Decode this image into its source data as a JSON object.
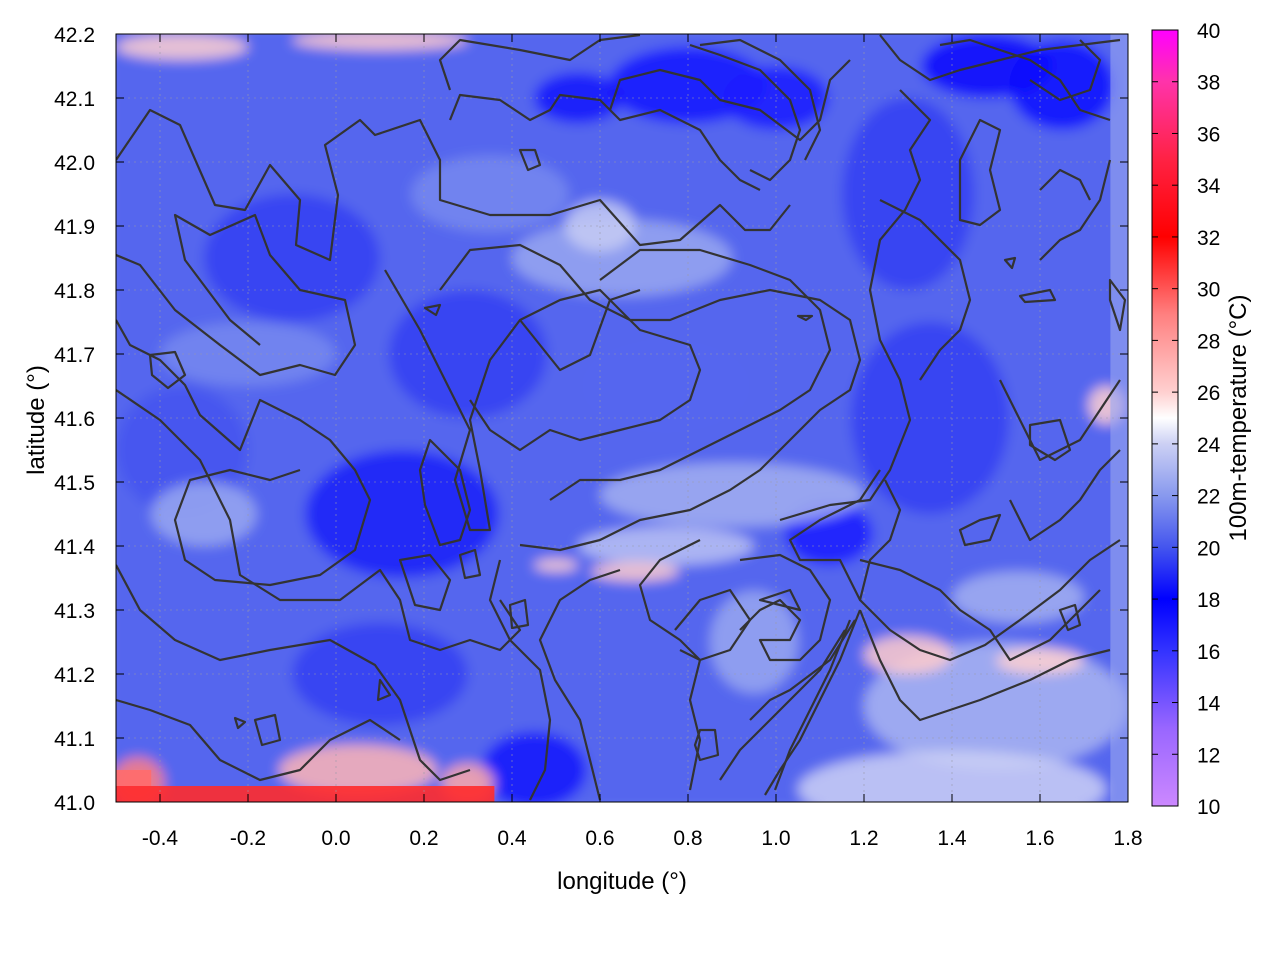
{
  "chart_data": {
    "type": "heatmap",
    "title": "",
    "xlabel": "longitude (°)",
    "ylabel": "latitude (°)",
    "colorbar_label": "100m-temperature (°C)",
    "xlim": [
      -0.5,
      1.8
    ],
    "ylim": [
      41.0,
      42.2
    ],
    "clim": [
      10,
      40
    ],
    "x_ticks": [
      -0.4,
      -0.2,
      0.0,
      0.2,
      0.4,
      0.6,
      0.8,
      1.0,
      1.2,
      1.4,
      1.6,
      1.8
    ],
    "y_ticks": [
      41.0,
      41.1,
      41.2,
      41.3,
      41.4,
      41.5,
      41.6,
      41.7,
      41.8,
      41.9,
      42.0,
      42.1,
      42.2
    ],
    "colorbar_ticks": [
      10,
      12,
      14,
      16,
      18,
      20,
      22,
      24,
      26,
      28,
      30,
      32,
      34,
      36,
      38,
      40
    ],
    "x_tick_labels": [
      "-0.4",
      "-0.2",
      "0.0",
      "0.2",
      "0.4",
      "0.6",
      "0.8",
      "1.0",
      "1.2",
      "1.4",
      "1.6",
      "1.8"
    ],
    "y_tick_labels": [
      "41.0",
      "41.1",
      "41.2",
      "41.3",
      "41.4",
      "41.5",
      "41.6",
      "41.7",
      "41.8",
      "41.9",
      "42.0",
      "42.1",
      "42.2"
    ],
    "colorbar_tick_labels": [
      "10",
      "12",
      "14",
      "16",
      "18",
      "20",
      "22",
      "24",
      "26",
      "28",
      "30",
      "32",
      "34",
      "36",
      "38",
      "40"
    ],
    "colormap": [
      {
        "value": 10,
        "color": "#cc88ff"
      },
      {
        "value": 13,
        "color": "#9966ff"
      },
      {
        "value": 16,
        "color": "#3333ff"
      },
      {
        "value": 18,
        "color": "#0000ff"
      },
      {
        "value": 20,
        "color": "#4455ee"
      },
      {
        "value": 22,
        "color": "#8899ee"
      },
      {
        "value": 24,
        "color": "#ccd0f4"
      },
      {
        "value": 25,
        "color": "#ffffff"
      },
      {
        "value": 26,
        "color": "#ffd0d0"
      },
      {
        "value": 29,
        "color": "#ff8080"
      },
      {
        "value": 32,
        "color": "#ff0000"
      },
      {
        "value": 35,
        "color": "#ff2244"
      },
      {
        "value": 38,
        "color": "#ff33aa"
      },
      {
        "value": 40,
        "color": "#ff00ff"
      }
    ],
    "grid": true,
    "contours": true,
    "contour_color": "#333333"
  }
}
